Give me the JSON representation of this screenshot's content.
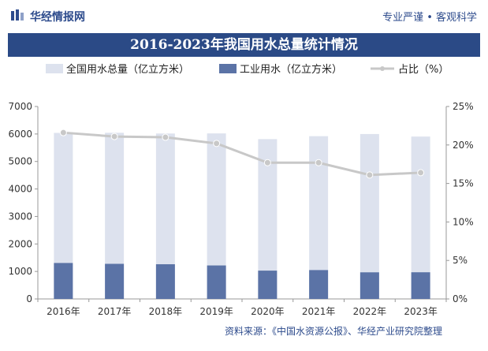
{
  "header": {
    "brand": "华经情报网",
    "slogan": "专业严谨 • 客观科学"
  },
  "colors": {
    "total_bar": "#dde2ee",
    "industrial_bar": "#5b73a6",
    "ratio_line": "#c8c8c8",
    "title_bg": "#2b4a86",
    "brand": "#2d4b8c"
  },
  "source_note": "资料来源：《中国水资源公报》、华经产业研究院整理",
  "chart_data": {
    "type": "bar",
    "title": "2016-2023年我国用水总量统计情况",
    "categories": [
      "2016年",
      "2017年",
      "2018年",
      "2019年",
      "2020年",
      "2021年",
      "2022年",
      "2023年"
    ],
    "series": [
      {
        "name": "全国用水总量（亿立方米）",
        "type": "bar",
        "axis": "left",
        "values": [
          6040,
          6043,
          6016,
          6021,
          5813,
          5920,
          5998,
          5906
        ]
      },
      {
        "name": "工业用水（亿立方米）",
        "type": "bar",
        "axis": "left",
        "values": [
          1308,
          1277,
          1262,
          1218,
          1030,
          1050,
          968,
          970
        ]
      },
      {
        "name": "占比（%）",
        "type": "line",
        "axis": "right",
        "values": [
          21.6,
          21.1,
          21.0,
          20.2,
          17.7,
          17.7,
          16.1,
          16.4
        ]
      }
    ],
    "y_left": {
      "ylim": [
        0,
        7000
      ],
      "ticks": [
        0,
        1000,
        2000,
        3000,
        4000,
        5000,
        6000,
        7000
      ]
    },
    "y_right": {
      "ylim": [
        0,
        25
      ],
      "ticks": [
        "0%",
        "5%",
        "10%",
        "15%",
        "20%",
        "25%"
      ],
      "tick_values": [
        0,
        5,
        10,
        15,
        20,
        25
      ]
    },
    "legend_position": "top",
    "grid": false
  }
}
